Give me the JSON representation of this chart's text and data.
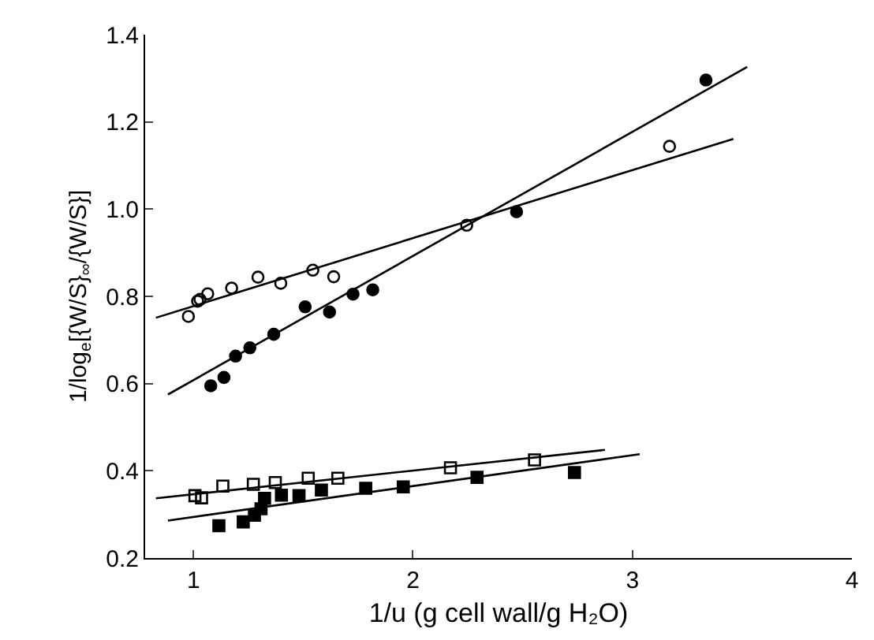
{
  "chart_data": {
    "type": "scatter",
    "xlabel": "1/u (g cell wall/g H₂O)",
    "ylabel": "1/log$_{e}$[{W/S}$_{∞}$/{W/S}]",
    "xlim": [
      0.78,
      4.0
    ],
    "xticks": [
      1,
      2,
      3,
      4
    ],
    "ylim": [
      0.2,
      1.4
    ],
    "yticks": [
      0.2,
      0.4,
      0.6,
      0.8,
      {
        "value": 1.0,
        "label": "1.0"
      },
      1.2,
      1.4
    ],
    "series": [
      {
        "marker": "circle-open",
        "color": "#000000",
        "x": [
          0.977,
          1.019,
          1.03,
          1.065,
          1.174,
          1.294,
          1.398,
          1.544,
          1.639,
          2.245,
          3.169
        ],
        "values": [
          0.754,
          0.789,
          0.793,
          0.806,
          0.819,
          0.844,
          0.83,
          0.86,
          0.845,
          0.963,
          1.144
        ]
      },
      {
        "marker": "circle",
        "color": "#000000",
        "x": [
          1.079,
          1.139,
          1.192,
          1.257,
          1.366,
          1.509,
          1.62,
          1.727,
          1.817,
          2.472,
          3.335
        ],
        "values": [
          0.595,
          0.614,
          0.663,
          0.682,
          0.713,
          0.776,
          0.764,
          0.805,
          0.815,
          0.994,
          1.296
        ]
      },
      {
        "marker": "square-open",
        "color": "#000000",
        "x": [
          1.007,
          1.037,
          1.134,
          1.273,
          1.373,
          1.523,
          1.658,
          2.171,
          2.554
        ],
        "values": [
          0.343,
          0.338,
          0.365,
          0.369,
          0.373,
          0.383,
          0.383,
          0.407,
          0.425
        ]
      },
      {
        "marker": "square",
        "color": "#000000",
        "x": [
          1.116,
          1.227,
          1.278,
          1.308,
          1.324,
          1.401,
          1.481,
          1.583,
          1.785,
          1.956,
          2.292,
          2.736
        ],
        "values": [
          0.274,
          0.283,
          0.298,
          0.313,
          0.337,
          0.344,
          0.343,
          0.356,
          0.36,
          0.363,
          0.385,
          0.396
        ]
      },
      {
        "type": "line",
        "color": "#000000",
        "x": [
          0.829,
          3.46
        ],
        "values": [
          0.751,
          1.161
        ]
      },
      {
        "type": "line",
        "color": "#000000",
        "x": [
          0.884,
          3.523
        ],
        "values": [
          0.575,
          1.326
        ]
      },
      {
        "type": "line",
        "color": "#000000",
        "x": [
          0.829,
          2.875
        ],
        "values": [
          0.337,
          0.448
        ]
      },
      {
        "type": "line",
        "color": "#000000",
        "x": [
          0.884,
          3.033
        ],
        "values": [
          0.286,
          0.438
        ]
      }
    ]
  }
}
